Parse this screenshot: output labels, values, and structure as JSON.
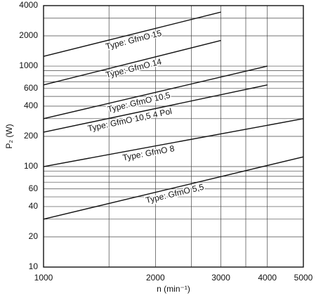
{
  "chart_data": {
    "type": "line",
    "xlabel": "n (min⁻¹)",
    "ylabel": "P₂ (W)",
    "xscale": "log",
    "yscale": "log",
    "grid": true,
    "xlim": [
      1000,
      5000
    ],
    "ylim": [
      10,
      4000
    ],
    "xticks": [
      1000,
      2000,
      3000,
      4000,
      5000
    ],
    "yticks": [
      10,
      20,
      40,
      60,
      100,
      200,
      400,
      600,
      1000,
      2000,
      4000
    ],
    "x_minor_grid": [
      1500,
      2500,
      3500
    ],
    "y_minor_grid": [
      30,
      50,
      70,
      80,
      90,
      300,
      500,
      700,
      800,
      900,
      3000
    ],
    "series": [
      {
        "name": "Type: GfmO 15",
        "color": "#111111",
        "x": [
          1000,
          3000
        ],
        "values": [
          1250,
          3450
        ]
      },
      {
        "name": "Type: GfmO 14",
        "color": "#111111",
        "x": [
          1000,
          3000
        ],
        "values": [
          650,
          1800
        ]
      },
      {
        "name": "Type: GfmO 10,5",
        "color": "#111111",
        "x": [
          1000,
          4000
        ],
        "values": [
          300,
          1000
        ]
      },
      {
        "name": "Type: GfmO 10,5 4 Pol",
        "color": "#111111",
        "x": [
          1000,
          4000
        ],
        "values": [
          220,
          650
        ]
      },
      {
        "name": "Type: GfmO 8",
        "color": "#111111",
        "x": [
          1000,
          5000
        ],
        "values": [
          100,
          300
        ]
      },
      {
        "name": "Type: GfmO 5,5",
        "color": "#111111",
        "x": [
          1000,
          5000
        ],
        "values": [
          30,
          125
        ]
      }
    ]
  }
}
